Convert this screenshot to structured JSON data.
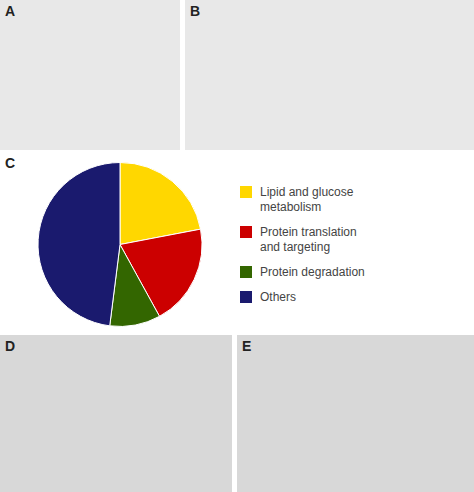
{
  "chart_data": {
    "type": "pie",
    "title": "C",
    "annotations": [
      "A",
      "B",
      "D",
      "E"
    ],
    "categories": [
      "Lipid and glucose\nmetabolism",
      "Protein translation\nand targeting",
      "Protein degradation",
      "Others"
    ],
    "values": [
      22,
      20,
      10,
      48
    ],
    "colors": [
      "#FFD700",
      "#CC0000",
      "#336600",
      "#1a1a6e"
    ],
    "legend": "right"
  }
}
